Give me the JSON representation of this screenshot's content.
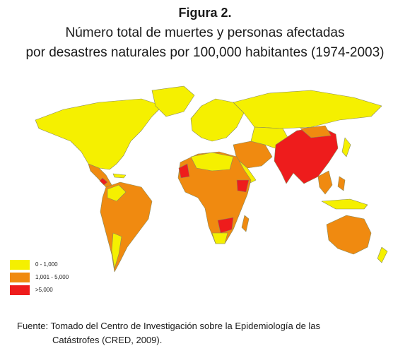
{
  "figure": {
    "label": "Figura 2.",
    "title_line1": "Número total de muertes y personas afectadas",
    "title_line2": "por desastres naturales  por 100,000 habitantes (1974-2003)"
  },
  "legend": {
    "items": [
      {
        "label": "0 - 1,000",
        "color": "#f5f000"
      },
      {
        "label": "1,001 - 5,000",
        "color": "#f08a10"
      },
      {
        "label": ">5,000",
        "color": "#ee1c1c"
      }
    ]
  },
  "map": {
    "border_color": "#8a8a5a",
    "colors": {
      "low": "#f5f000",
      "mid": "#f08a10",
      "high": "#ee1c1c"
    }
  },
  "source": {
    "line1": "Fuente: Tomado del Centro de Investigación sobre la Epidemiología de las",
    "line2": "Catástrofes (CRED, 2009)."
  }
}
